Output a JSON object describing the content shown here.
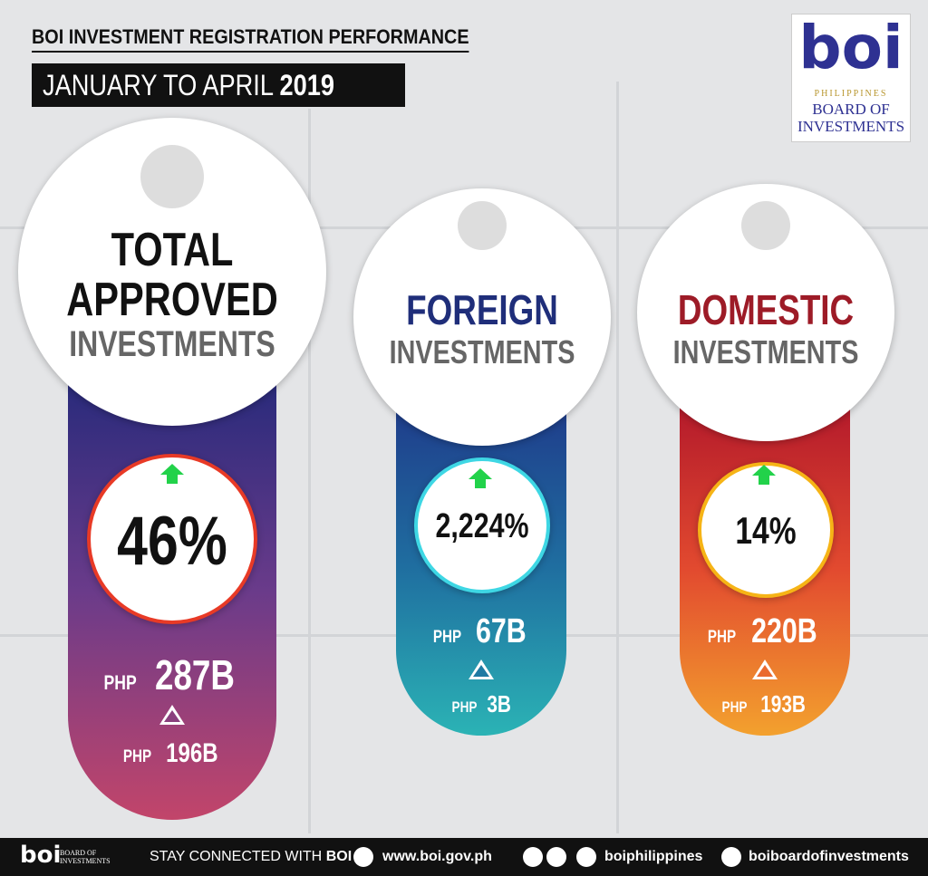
{
  "header": {
    "title": "BOI INVESTMENT REGISTRATION PERFORMANCE",
    "period_prefix": "JANUARY TO APRIL",
    "period_year": "2019"
  },
  "logo": {
    "mark": "boi",
    "country": "PHILIPPINES",
    "name_line1": "BOARD OF",
    "name_line2": "INVESTMENTS"
  },
  "cards": [
    {
      "title_lines": [
        "TOTAL",
        "APPROVED"
      ],
      "subtitle": "INVESTMENTS",
      "growth": "46%",
      "amount_currency": "PHP",
      "amount": "287B",
      "previous_currency": "PHP",
      "previous": "196B"
    },
    {
      "title_lines": [
        "FOREIGN"
      ],
      "subtitle": "INVESTMENTS",
      "growth": "2,224%",
      "amount_currency": "PHP",
      "amount": "67B",
      "previous_currency": "PHP",
      "previous": "3B"
    },
    {
      "title_lines": [
        "DOMESTIC"
      ],
      "subtitle": "INVESTMENTS",
      "growth": "14%",
      "amount_currency": "PHP",
      "amount": "220B",
      "previous_currency": "PHP",
      "previous": "193B"
    }
  ],
  "footer": {
    "logo_mark": "boi",
    "logo_text": "BOARD OF INVESTMENTS",
    "stay": "STAY CONNECTED WITH",
    "stay_brand": "BOI",
    "website": "www.boi.gov.ph",
    "social": "boiphilippines",
    "youtube": "boiboardofinvestments"
  }
}
